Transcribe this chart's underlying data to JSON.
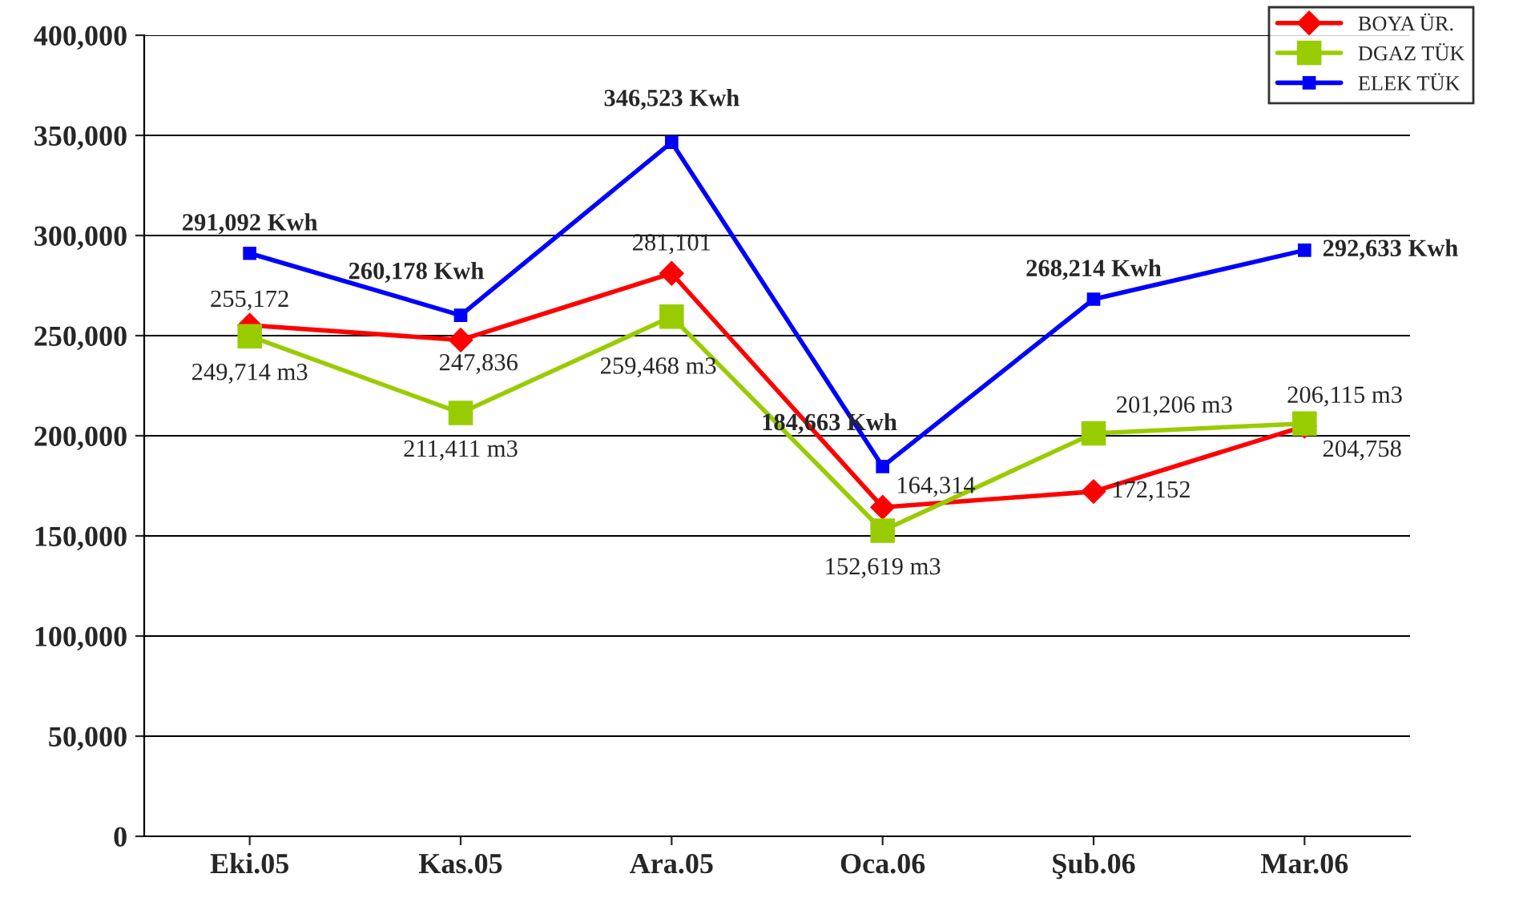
{
  "chart_data": {
    "type": "line",
    "categories": [
      "Eki.05",
      "Kas.05",
      "Ara.05",
      "Oca.06",
      "Şub.06",
      "Mar.06"
    ],
    "series": [
      {
        "name": "BOYA ÜR.",
        "color": "#ff0000",
        "marker": "diamond",
        "values": [
          255172,
          247836,
          281101,
          164314,
          172152,
          204758
        ],
        "value_labels": [
          "255,172",
          "247,836",
          "281,101",
          "164,314",
          "172,152",
          "204,758"
        ]
      },
      {
        "name": "DGAZ TÜK",
        "color": "#99cc00",
        "marker": "square",
        "values": [
          249714,
          211411,
          259468,
          152619,
          201206,
          206115
        ],
        "value_labels": [
          "249,714 m3",
          "211,411 m3",
          "259,468 m3",
          "152,619 m3",
          "201,206 m3",
          "206,115 m3"
        ]
      },
      {
        "name": "ELEK TÜK",
        "color": "#0000ff",
        "marker": "square",
        "values": [
          291092,
          260178,
          346523,
          184663,
          268214,
          292633
        ],
        "value_labels": [
          "291,092 Kwh",
          "260,178 Kwh",
          "346,523 Kwh",
          "184,663 Kwh",
          "268,214 Kwh",
          "292,633 Kwh"
        ]
      }
    ],
    "ylim": [
      0,
      400000
    ],
    "yticks": [
      0,
      {
        "value": 50000,
        "label": "50,000"
      },
      {
        "value": 100000,
        "label": "100,000"
      },
      {
        "value": 150000,
        "label": "150,000"
      },
      {
        "value": 200000,
        "label": "200,000"
      },
      {
        "value": 250000,
        "label": "250,000"
      },
      {
        "value": 300000,
        "label": "300,000"
      },
      {
        "value": 350000,
        "label": "350,000"
      },
      {
        "value": 400000,
        "label": "400,000"
      }
    ],
    "grid": "y",
    "legend": "top right",
    "line_style": "solid"
  }
}
